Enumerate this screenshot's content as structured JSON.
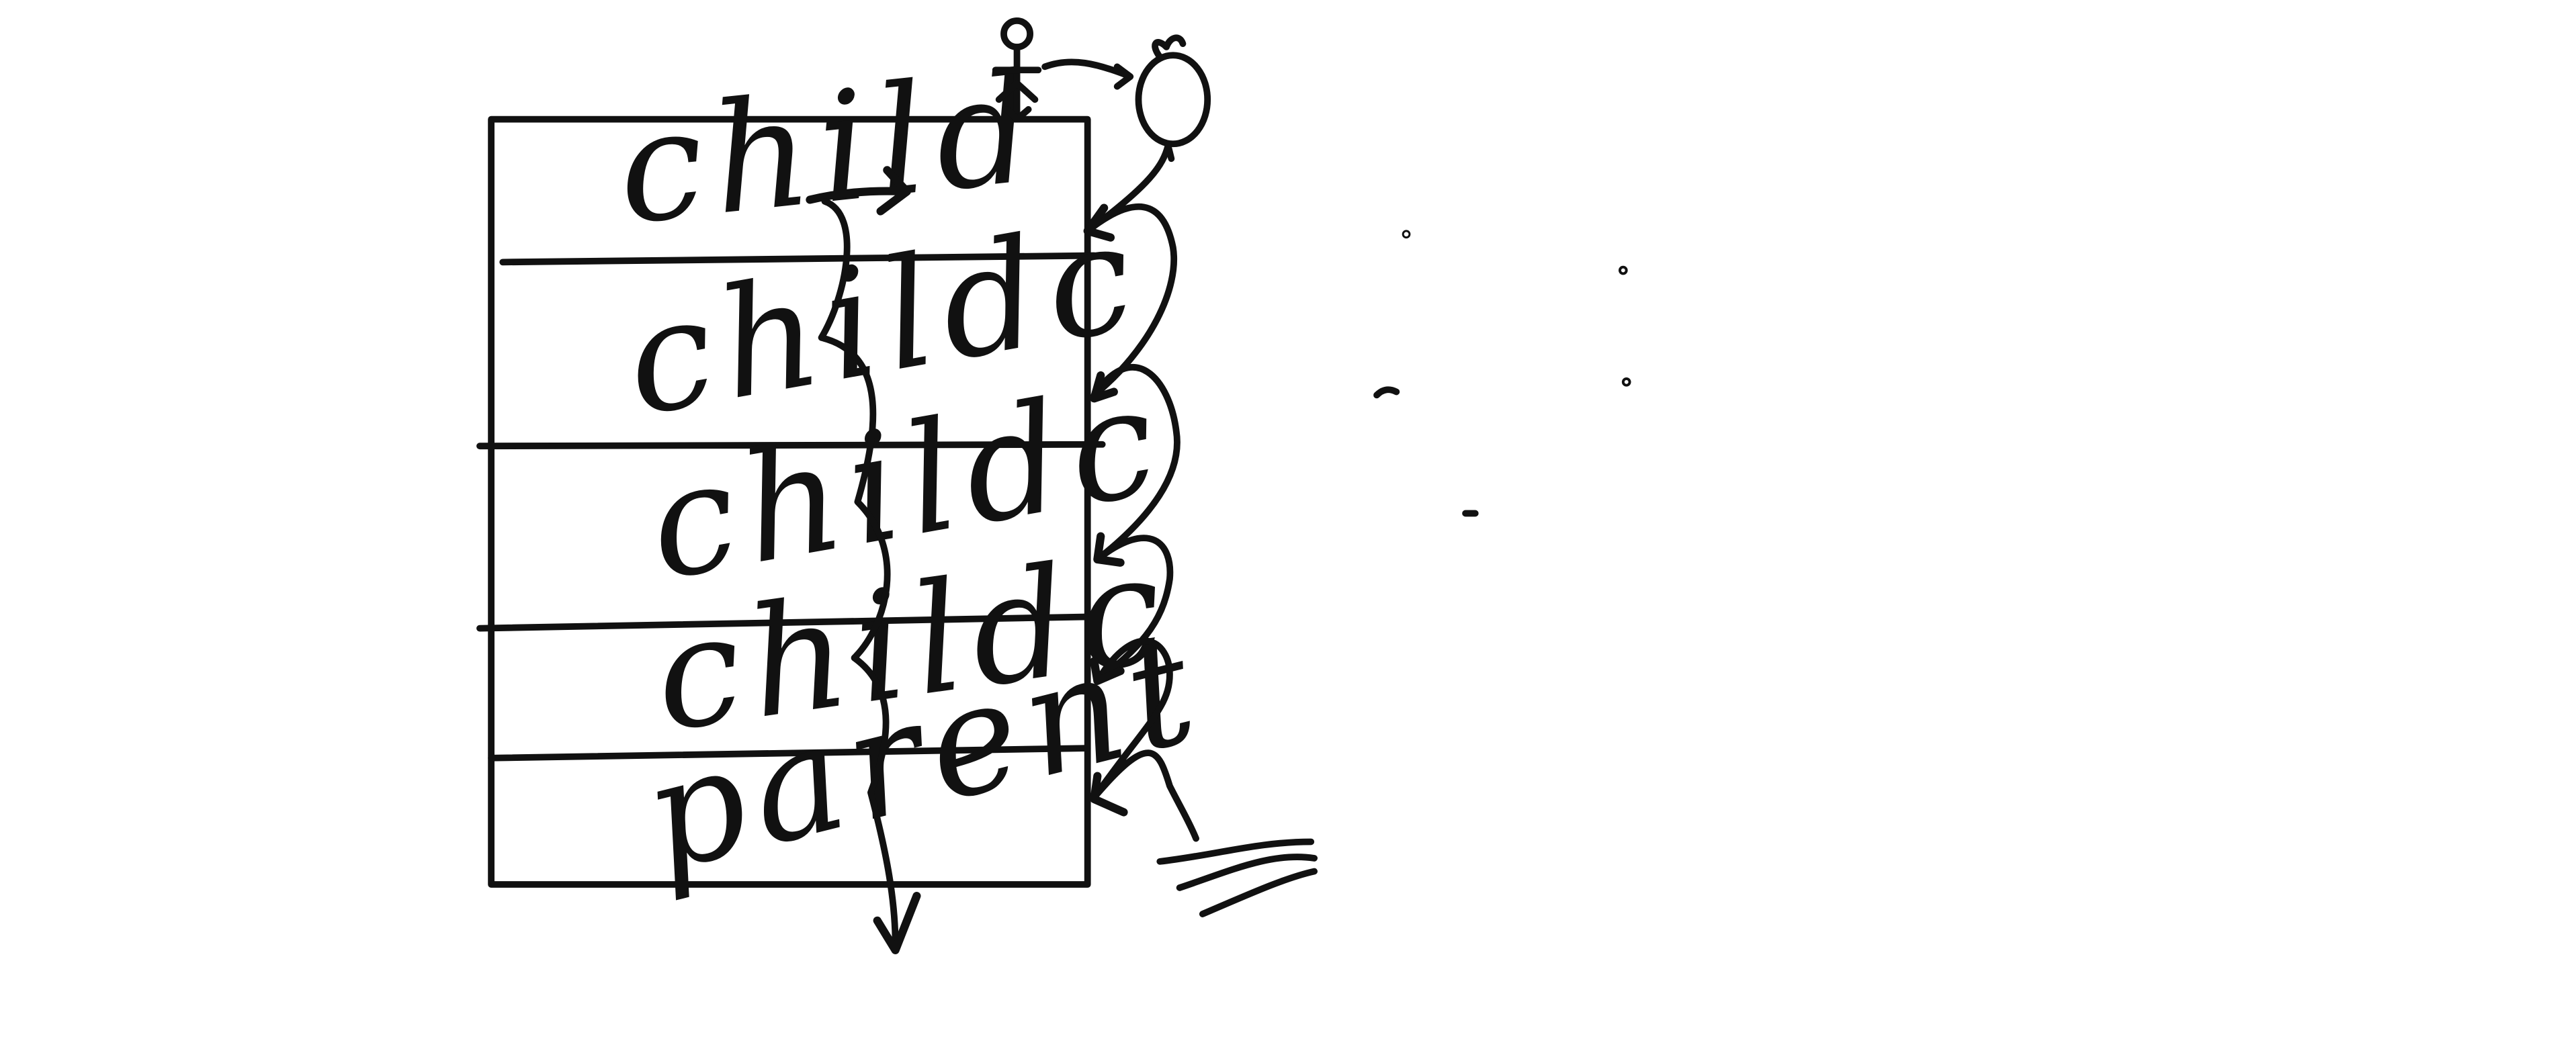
{
  "diagram": {
    "layers": [
      {
        "label": "child"
      },
      {
        "label": "childc"
      },
      {
        "label": "childc"
      },
      {
        "label": "childc"
      },
      {
        "label": "parent"
      }
    ],
    "ink_color": "#111111",
    "background_color": "#ffffff",
    "icons": [
      "stick-figure-icon",
      "balloon-icon",
      "water-icon"
    ]
  }
}
